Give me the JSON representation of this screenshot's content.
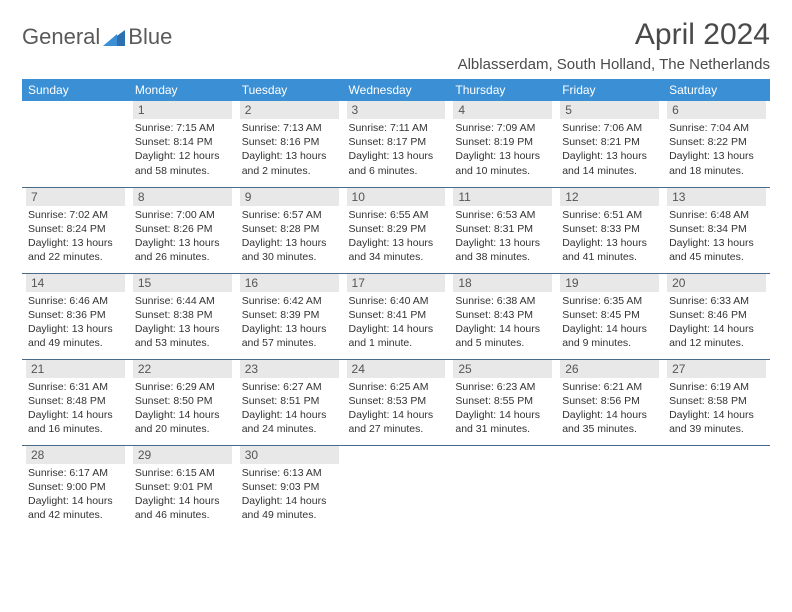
{
  "logo": {
    "part1": "General",
    "part2": "Blue"
  },
  "title": "April 2024",
  "location": "Alblasserdam, South Holland, The Netherlands",
  "colors": {
    "header_bg": "#3b8fd4",
    "header_fg": "#ffffff",
    "daynum_bg": "#e8e8e8",
    "border": "#4a6a8a",
    "text": "#333333",
    "title_color": "#4a4a4a",
    "logo_gray": "#5a5a5a",
    "logo_blue": "#3b7fc4"
  },
  "weekdays": [
    "Sunday",
    "Monday",
    "Tuesday",
    "Wednesday",
    "Thursday",
    "Friday",
    "Saturday"
  ],
  "weeks": [
    [
      {
        "empty": true
      },
      {
        "day": "1",
        "sunrise": "7:15 AM",
        "sunset": "8:14 PM",
        "daylight": "12 hours and 58 minutes."
      },
      {
        "day": "2",
        "sunrise": "7:13 AM",
        "sunset": "8:16 PM",
        "daylight": "13 hours and 2 minutes."
      },
      {
        "day": "3",
        "sunrise": "7:11 AM",
        "sunset": "8:17 PM",
        "daylight": "13 hours and 6 minutes."
      },
      {
        "day": "4",
        "sunrise": "7:09 AM",
        "sunset": "8:19 PM",
        "daylight": "13 hours and 10 minutes."
      },
      {
        "day": "5",
        "sunrise": "7:06 AM",
        "sunset": "8:21 PM",
        "daylight": "13 hours and 14 minutes."
      },
      {
        "day": "6",
        "sunrise": "7:04 AM",
        "sunset": "8:22 PM",
        "daylight": "13 hours and 18 minutes."
      }
    ],
    [
      {
        "day": "7",
        "sunrise": "7:02 AM",
        "sunset": "8:24 PM",
        "daylight": "13 hours and 22 minutes."
      },
      {
        "day": "8",
        "sunrise": "7:00 AM",
        "sunset": "8:26 PM",
        "daylight": "13 hours and 26 minutes."
      },
      {
        "day": "9",
        "sunrise": "6:57 AM",
        "sunset": "8:28 PM",
        "daylight": "13 hours and 30 minutes."
      },
      {
        "day": "10",
        "sunrise": "6:55 AM",
        "sunset": "8:29 PM",
        "daylight": "13 hours and 34 minutes."
      },
      {
        "day": "11",
        "sunrise": "6:53 AM",
        "sunset": "8:31 PM",
        "daylight": "13 hours and 38 minutes."
      },
      {
        "day": "12",
        "sunrise": "6:51 AM",
        "sunset": "8:33 PM",
        "daylight": "13 hours and 41 minutes."
      },
      {
        "day": "13",
        "sunrise": "6:48 AM",
        "sunset": "8:34 PM",
        "daylight": "13 hours and 45 minutes."
      }
    ],
    [
      {
        "day": "14",
        "sunrise": "6:46 AM",
        "sunset": "8:36 PM",
        "daylight": "13 hours and 49 minutes."
      },
      {
        "day": "15",
        "sunrise": "6:44 AM",
        "sunset": "8:38 PM",
        "daylight": "13 hours and 53 minutes."
      },
      {
        "day": "16",
        "sunrise": "6:42 AM",
        "sunset": "8:39 PM",
        "daylight": "13 hours and 57 minutes."
      },
      {
        "day": "17",
        "sunrise": "6:40 AM",
        "sunset": "8:41 PM",
        "daylight": "14 hours and 1 minute."
      },
      {
        "day": "18",
        "sunrise": "6:38 AM",
        "sunset": "8:43 PM",
        "daylight": "14 hours and 5 minutes."
      },
      {
        "day": "19",
        "sunrise": "6:35 AM",
        "sunset": "8:45 PM",
        "daylight": "14 hours and 9 minutes."
      },
      {
        "day": "20",
        "sunrise": "6:33 AM",
        "sunset": "8:46 PM",
        "daylight": "14 hours and 12 minutes."
      }
    ],
    [
      {
        "day": "21",
        "sunrise": "6:31 AM",
        "sunset": "8:48 PM",
        "daylight": "14 hours and 16 minutes."
      },
      {
        "day": "22",
        "sunrise": "6:29 AM",
        "sunset": "8:50 PM",
        "daylight": "14 hours and 20 minutes."
      },
      {
        "day": "23",
        "sunrise": "6:27 AM",
        "sunset": "8:51 PM",
        "daylight": "14 hours and 24 minutes."
      },
      {
        "day": "24",
        "sunrise": "6:25 AM",
        "sunset": "8:53 PM",
        "daylight": "14 hours and 27 minutes."
      },
      {
        "day": "25",
        "sunrise": "6:23 AM",
        "sunset": "8:55 PM",
        "daylight": "14 hours and 31 minutes."
      },
      {
        "day": "26",
        "sunrise": "6:21 AM",
        "sunset": "8:56 PM",
        "daylight": "14 hours and 35 minutes."
      },
      {
        "day": "27",
        "sunrise": "6:19 AM",
        "sunset": "8:58 PM",
        "daylight": "14 hours and 39 minutes."
      }
    ],
    [
      {
        "day": "28",
        "sunrise": "6:17 AM",
        "sunset": "9:00 PM",
        "daylight": "14 hours and 42 minutes."
      },
      {
        "day": "29",
        "sunrise": "6:15 AM",
        "sunset": "9:01 PM",
        "daylight": "14 hours and 46 minutes."
      },
      {
        "day": "30",
        "sunrise": "6:13 AM",
        "sunset": "9:03 PM",
        "daylight": "14 hours and 49 minutes."
      },
      {
        "empty": true
      },
      {
        "empty": true
      },
      {
        "empty": true
      },
      {
        "empty": true
      }
    ]
  ],
  "labels": {
    "sunrise": "Sunrise: ",
    "sunset": "Sunset: ",
    "daylight": "Daylight: "
  }
}
